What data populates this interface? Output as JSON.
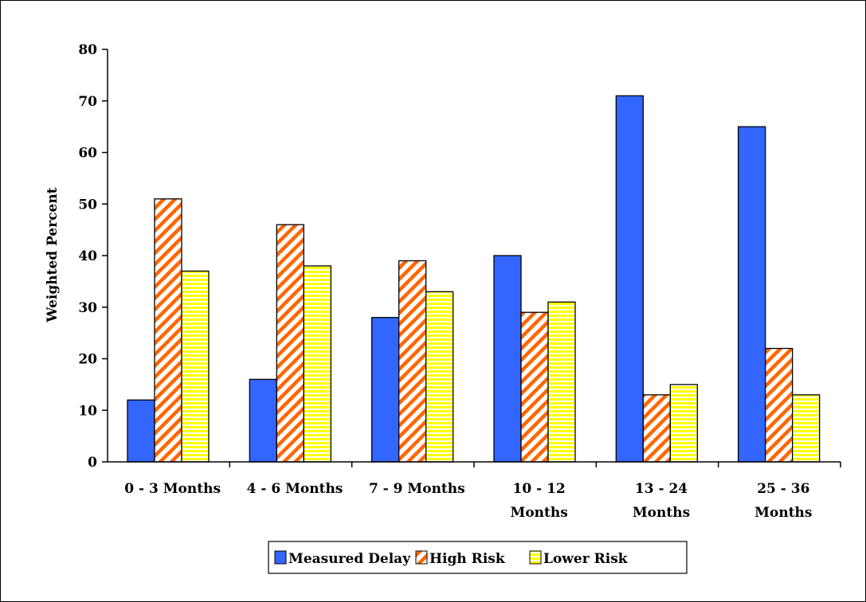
{
  "chart_data": {
    "type": "bar",
    "title": "",
    "xlabel": "",
    "ylabel": "Weighted Percent",
    "ylim": [
      0,
      80
    ],
    "yticks": [
      0,
      10,
      20,
      30,
      40,
      50,
      60,
      70,
      80
    ],
    "categories": [
      [
        "0 - 3 Months"
      ],
      [
        "4 - 6 Months"
      ],
      [
        "7 - 9 Months"
      ],
      [
        "10 - 12",
        "Months"
      ],
      [
        "13 - 24",
        "Months"
      ],
      [
        "25 - 36",
        "Months"
      ]
    ],
    "series": [
      {
        "name": "Measured Delay",
        "values": [
          12,
          16,
          28,
          40,
          71,
          65
        ]
      },
      {
        "name": "High Risk",
        "values": [
          51,
          46,
          39,
          29,
          13,
          22
        ]
      },
      {
        "name": "Lower Risk",
        "values": [
          37,
          38,
          33,
          31,
          15,
          13
        ]
      }
    ],
    "colors": {
      "measured_delay": "#3366ff",
      "high_risk_stripe": "#ff6600",
      "lower_risk_stripe": "#ffff00"
    },
    "grid": false,
    "legend_position": "bottom-center"
  }
}
